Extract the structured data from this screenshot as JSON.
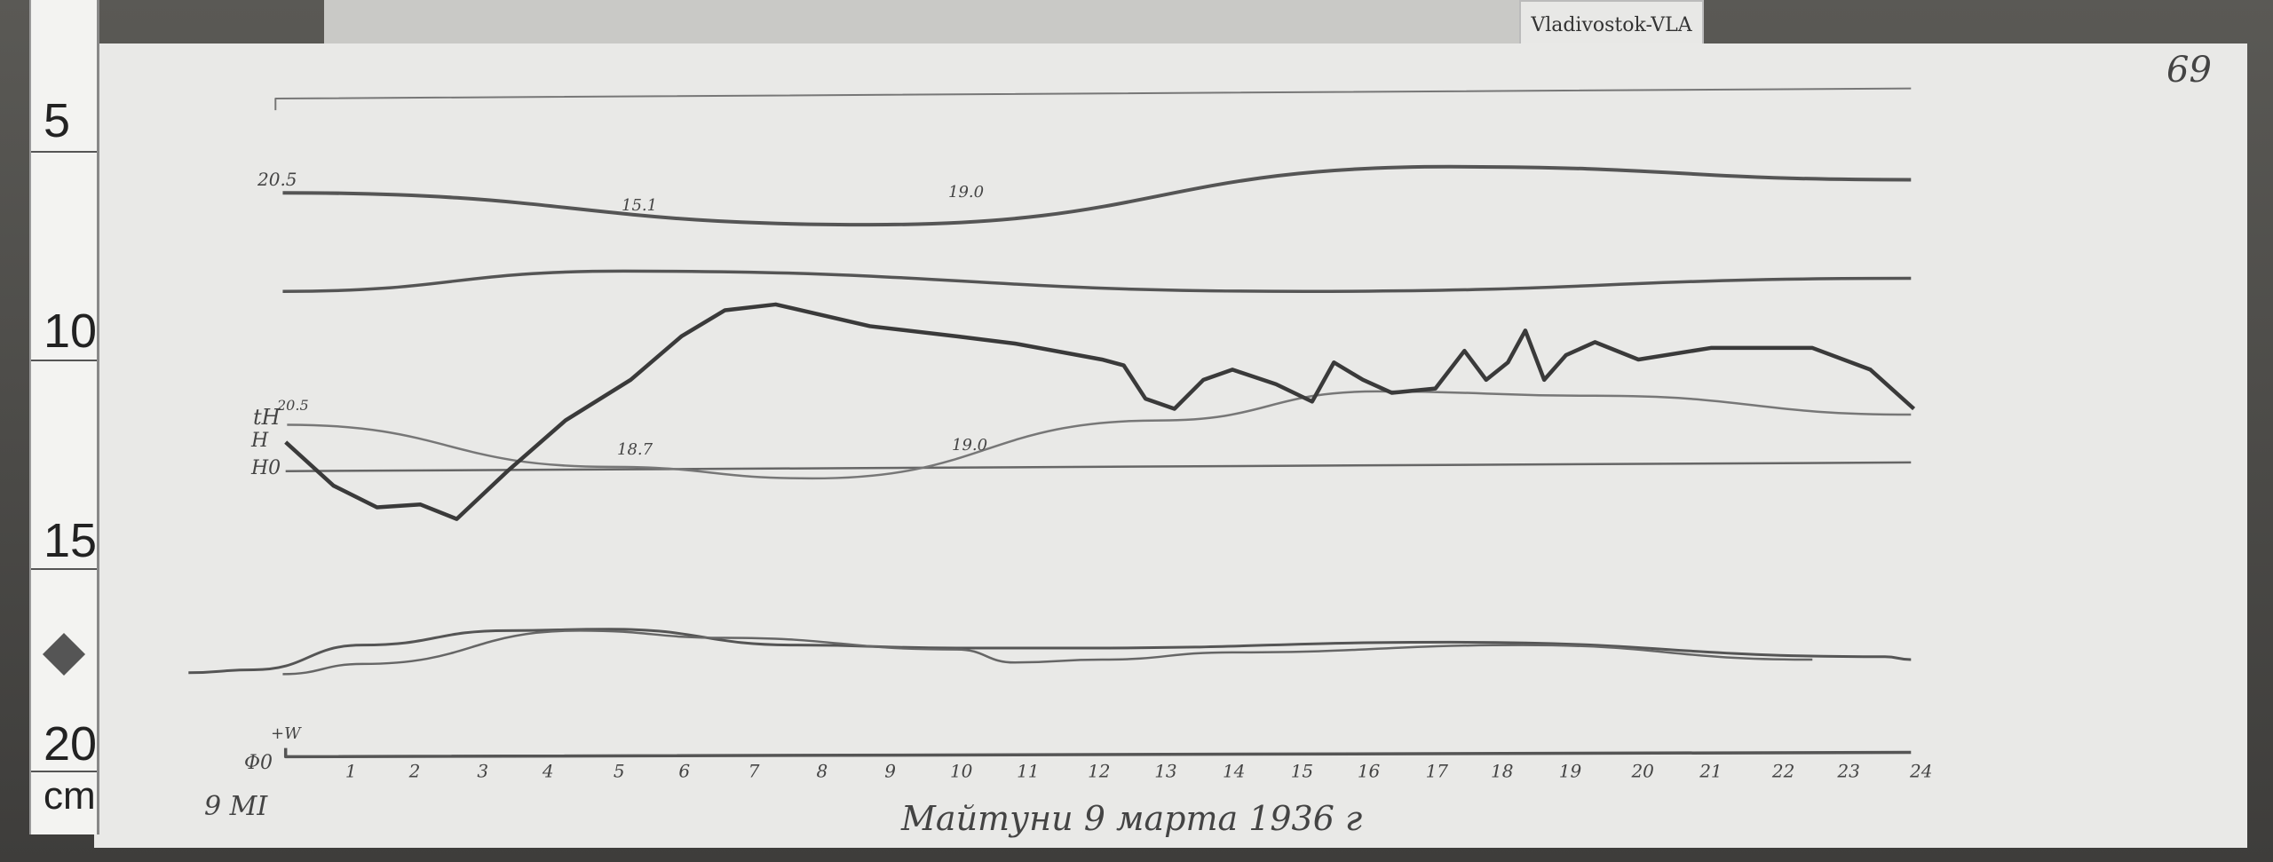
{
  "station_tab": "Vladivostok-VLA",
  "page_number": "69",
  "ruler": {
    "marks": [
      "5",
      "10",
      "15",
      "20"
    ],
    "unit": "cm"
  },
  "trace_labels": {
    "top_left": "20.5",
    "top_mid1": "15.1",
    "top_mid2": "19.0",
    "th_start": "20.5",
    "th_mid1": "18.7",
    "th_mid2": "19.0",
    "th_label": "tH",
    "h_label": "H",
    "h0_label": "H0",
    "w_label": "+W",
    "baseline_label": "Φ0"
  },
  "hours": [
    "1",
    "2",
    "3",
    "4",
    "5",
    "6",
    "7",
    "8",
    "9",
    "10",
    "11",
    "12",
    "13",
    "14",
    "15",
    "16",
    "17",
    "18",
    "19",
    "20",
    "21",
    "22",
    "23",
    "24"
  ],
  "caption": "Майтуни 9 марта 1936 г",
  "corner_note": "9 MI"
}
